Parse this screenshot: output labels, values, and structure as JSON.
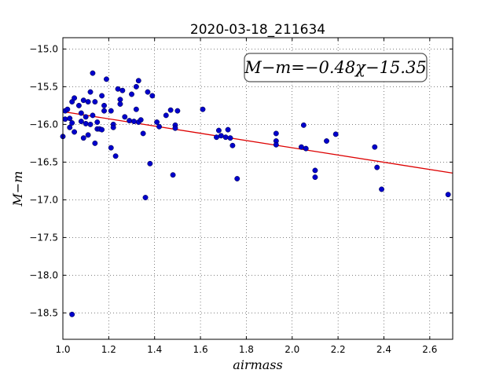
{
  "chart_data": {
    "type": "scatter",
    "title": "2020-03-18_211634",
    "xlabel": "airmass",
    "ylabel": "M−m",
    "xlim": [
      1.0,
      2.7
    ],
    "ylim": [
      -18.85,
      -14.85
    ],
    "y_inverted": true,
    "grid": true,
    "xticks": [
      1.0,
      1.2,
      1.4,
      1.6,
      1.8,
      2.0,
      2.2,
      2.4,
      2.6
    ],
    "xtick_labels": [
      "1.0",
      "1.2",
      "1.4",
      "1.6",
      "1.8",
      "2.0",
      "2.2",
      "2.4",
      "2.6"
    ],
    "yticks": [
      -15.0,
      -15.5,
      -16.0,
      -16.5,
      -17.0,
      -17.5,
      -18.0,
      -18.5
    ],
    "ytick_labels": [
      "−15.0",
      "−15.5",
      "−16.0",
      "−16.5",
      "−17.0",
      "−17.5",
      "−18.0",
      "−18.5"
    ],
    "marker_color": "#0000cc",
    "fit_color": "#dd0000",
    "fit": {
      "slope": -0.48,
      "intercept": -15.35
    },
    "annotation": "M−m=−0.48χ−15.35",
    "points": [
      {
        "x": 1.0,
        "y": -16.16
      },
      {
        "x": 1.01,
        "y": -15.82
      },
      {
        "x": 1.01,
        "y": -15.93
      },
      {
        "x": 1.02,
        "y": -15.8
      },
      {
        "x": 1.03,
        "y": -16.04
      },
      {
        "x": 1.03,
        "y": -15.92
      },
      {
        "x": 1.04,
        "y": -15.7
      },
      {
        "x": 1.04,
        "y": -15.98
      },
      {
        "x": 1.05,
        "y": -15.65
      },
      {
        "x": 1.05,
        "y": -16.1
      },
      {
        "x": 1.04,
        "y": -18.52
      },
      {
        "x": 1.07,
        "y": -15.75
      },
      {
        "x": 1.08,
        "y": -15.85
      },
      {
        "x": 1.08,
        "y": -15.96
      },
      {
        "x": 1.09,
        "y": -15.68
      },
      {
        "x": 1.09,
        "y": -16.18
      },
      {
        "x": 1.1,
        "y": -15.9
      },
      {
        "x": 1.1,
        "y": -15.99
      },
      {
        "x": 1.11,
        "y": -16.14
      },
      {
        "x": 1.11,
        "y": -15.7
      },
      {
        "x": 1.12,
        "y": -15.57
      },
      {
        "x": 1.12,
        "y": -16.0
      },
      {
        "x": 1.13,
        "y": -15.32
      },
      {
        "x": 1.13,
        "y": -15.88
      },
      {
        "x": 1.14,
        "y": -15.7
      },
      {
        "x": 1.14,
        "y": -16.25
      },
      {
        "x": 1.15,
        "y": -15.97
      },
      {
        "x": 1.15,
        "y": -16.06
      },
      {
        "x": 1.16,
        "y": -16.06
      },
      {
        "x": 1.17,
        "y": -15.62
      },
      {
        "x": 1.17,
        "y": -16.07
      },
      {
        "x": 1.18,
        "y": -15.75
      },
      {
        "x": 1.18,
        "y": -15.82
      },
      {
        "x": 1.19,
        "y": -15.4
      },
      {
        "x": 1.21,
        "y": -15.82
      },
      {
        "x": 1.21,
        "y": -16.31
      },
      {
        "x": 1.22,
        "y": -16.0
      },
      {
        "x": 1.22,
        "y": -16.04
      },
      {
        "x": 1.23,
        "y": -16.42
      },
      {
        "x": 1.24,
        "y": -15.53
      },
      {
        "x": 1.25,
        "y": -15.67
      },
      {
        "x": 1.25,
        "y": -15.73
      },
      {
        "x": 1.26,
        "y": -15.55
      },
      {
        "x": 1.27,
        "y": -15.9
      },
      {
        "x": 1.29,
        "y": -15.95
      },
      {
        "x": 1.3,
        "y": -15.6
      },
      {
        "x": 1.31,
        "y": -15.96
      },
      {
        "x": 1.32,
        "y": -15.8
      },
      {
        "x": 1.32,
        "y": -15.5
      },
      {
        "x": 1.33,
        "y": -15.97
      },
      {
        "x": 1.33,
        "y": -15.42
      },
      {
        "x": 1.34,
        "y": -15.94
      },
      {
        "x": 1.35,
        "y": -16.12
      },
      {
        "x": 1.36,
        "y": -16.97
      },
      {
        "x": 1.37,
        "y": -15.57
      },
      {
        "x": 1.38,
        "y": -16.52
      },
      {
        "x": 1.39,
        "y": -15.62
      },
      {
        "x": 1.41,
        "y": -15.97
      },
      {
        "x": 1.42,
        "y": -16.03
      },
      {
        "x": 1.45,
        "y": -15.88
      },
      {
        "x": 1.47,
        "y": -15.81
      },
      {
        "x": 1.48,
        "y": -16.67
      },
      {
        "x": 1.49,
        "y": -16.01
      },
      {
        "x": 1.49,
        "y": -16.05
      },
      {
        "x": 1.5,
        "y": -15.82
      },
      {
        "x": 1.61,
        "y": -15.8
      },
      {
        "x": 1.67,
        "y": -16.17
      },
      {
        "x": 1.68,
        "y": -16.08
      },
      {
        "x": 1.69,
        "y": -16.15
      },
      {
        "x": 1.71,
        "y": -16.17
      },
      {
        "x": 1.72,
        "y": -16.07
      },
      {
        "x": 1.73,
        "y": -16.18
      },
      {
        "x": 1.74,
        "y": -16.28
      },
      {
        "x": 1.76,
        "y": -16.72
      },
      {
        "x": 1.93,
        "y": -16.12
      },
      {
        "x": 1.93,
        "y": -16.22
      },
      {
        "x": 1.93,
        "y": -16.27
      },
      {
        "x": 2.04,
        "y": -16.3
      },
      {
        "x": 2.05,
        "y": -16.01
      },
      {
        "x": 2.06,
        "y": -16.32
      },
      {
        "x": 2.1,
        "y": -16.61
      },
      {
        "x": 2.1,
        "y": -16.7
      },
      {
        "x": 2.15,
        "y": -16.22
      },
      {
        "x": 2.19,
        "y": -16.13
      },
      {
        "x": 2.36,
        "y": -16.3
      },
      {
        "x": 2.37,
        "y": -16.57
      },
      {
        "x": 2.39,
        "y": -16.86
      },
      {
        "x": 2.68,
        "y": -16.93
      }
    ]
  }
}
